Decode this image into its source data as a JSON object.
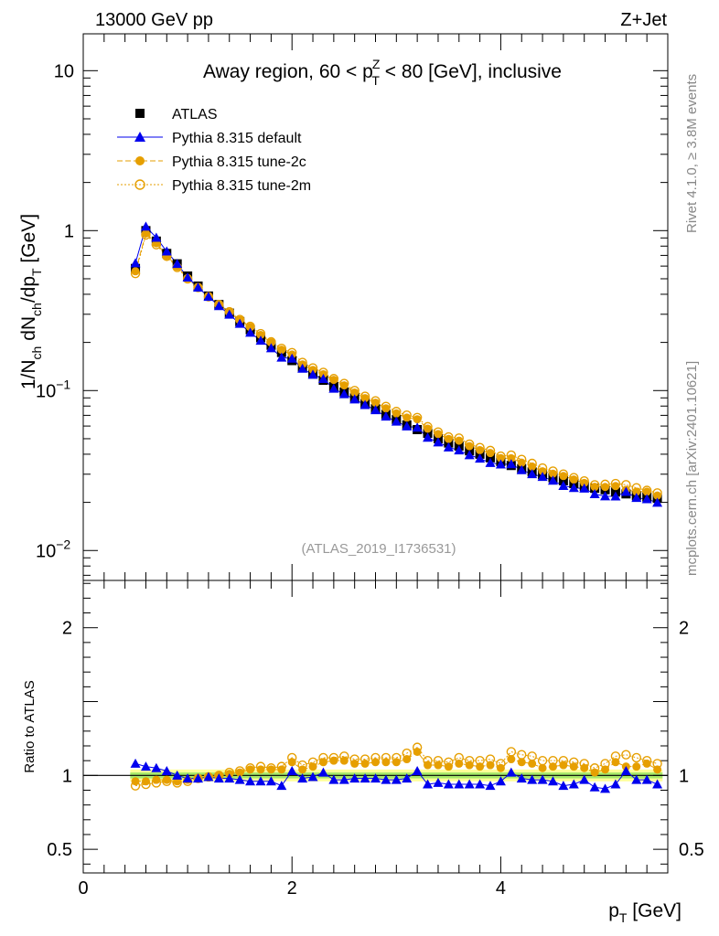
{
  "header": {
    "energy_label": "13000 GeV pp",
    "process_label": "Z+Jet",
    "side_rivet": "Rivet 4.1.0, ≥ 3.8M events",
    "side_mcplots": "mcplots.cern.ch [arXiv:2401.10621]",
    "analysis_id": "(ATLAS_2019_I1736531)"
  },
  "chart_data": [
    {
      "type": "scatter",
      "panel": "main",
      "title": "Away region, 60 < p_T^Z < 80 [GeV], inclusive",
      "ylabel": "1/N_ch dN_ch/dp_T [GeV]",
      "yscale": "log",
      "ylim": [
        0.0065,
        17
      ],
      "xlim": [
        0,
        5.6
      ],
      "yticks": [
        {
          "value": 10,
          "label": "10"
        },
        {
          "value": 1,
          "label": "1"
        },
        {
          "value": 0.1,
          "label": "10^-1"
        },
        {
          "value": 0.01,
          "label": "10^-2"
        }
      ],
      "legend_position": "top-left",
      "x": [
        0.5,
        0.6,
        0.7,
        0.8,
        0.9,
        1.0,
        1.1,
        1.2,
        1.3,
        1.4,
        1.5,
        1.6,
        1.7,
        1.8,
        1.9,
        2.0,
        2.1,
        2.2,
        2.3,
        2.4,
        2.5,
        2.6,
        2.7,
        2.8,
        2.9,
        3.0,
        3.1,
        3.2,
        3.3,
        3.4,
        3.5,
        3.6,
        3.7,
        3.8,
        3.9,
        4.0,
        4.1,
        4.2,
        4.3,
        4.4,
        4.5,
        4.6,
        4.7,
        4.8,
        4.9,
        5.0,
        5.1,
        5.2,
        5.3,
        5.4,
        5.5
      ],
      "series": [
        {
          "name": "ATLAS",
          "color": "#000000",
          "marker": "square",
          "values": [
            0.58,
            1.0,
            0.86,
            0.72,
            0.62,
            0.52,
            0.45,
            0.39,
            0.345,
            0.305,
            0.27,
            0.24,
            0.214,
            0.192,
            0.173,
            0.154,
            0.14,
            0.127,
            0.116,
            0.106,
            0.098,
            0.09,
            0.083,
            0.077,
            0.071,
            0.066,
            0.061,
            0.057,
            0.054,
            0.05,
            0.047,
            0.045,
            0.042,
            0.04,
            0.038,
            0.036,
            0.034,
            0.0325,
            0.031,
            0.0298,
            0.0285,
            0.0273,
            0.0262,
            0.0252,
            0.0245,
            0.024,
            0.0232,
            0.0226,
            0.022,
            0.0216,
            0.0212
          ]
        },
        {
          "name": "Pythia 8.315 default",
          "color": "#0000ee",
          "marker": "triangle",
          "ratio": [
            1.08,
            1.06,
            1.05,
            1.03,
            1.0,
            0.98,
            0.98,
            0.99,
            0.98,
            0.98,
            0.97,
            0.96,
            0.96,
            0.96,
            0.93,
            1.03,
            0.98,
            0.99,
            1.02,
            0.97,
            0.97,
            0.98,
            0.98,
            0.98,
            0.97,
            0.97,
            0.98,
            1.03,
            0.94,
            0.95,
            0.94,
            0.94,
            0.94,
            0.94,
            0.93,
            0.96,
            1.02,
            0.98,
            0.97,
            0.97,
            0.96,
            0.93,
            0.94,
            0.97,
            0.92,
            0.91,
            0.94,
            1.03,
            0.97,
            0.97,
            0.94
          ]
        },
        {
          "name": "Pythia 8.315 tune-2c",
          "color": "#e69f00",
          "marker": "circle",
          "ratio": [
            0.96,
            0.96,
            0.97,
            0.97,
            0.96,
            0.97,
            0.98,
            0.99,
            1.0,
            1.01,
            1.02,
            1.04,
            1.04,
            1.04,
            1.04,
            1.09,
            1.04,
            1.06,
            1.09,
            1.1,
            1.1,
            1.08,
            1.08,
            1.09,
            1.09,
            1.09,
            1.11,
            1.16,
            1.07,
            1.07,
            1.06,
            1.08,
            1.07,
            1.06,
            1.07,
            1.05,
            1.11,
            1.09,
            1.08,
            1.05,
            1.06,
            1.07,
            1.06,
            1.05,
            1.02,
            1.04,
            1.09,
            1.06,
            1.06,
            1.08,
            1.04
          ]
        },
        {
          "name": "Pythia 8.315 tune-2m",
          "color": "#e69f00",
          "marker": "open-circle",
          "ratio": [
            0.93,
            0.94,
            0.95,
            0.96,
            0.95,
            0.96,
            0.98,
            0.99,
            1.0,
            1.02,
            1.03,
            1.05,
            1.06,
            1.05,
            1.06,
            1.12,
            1.07,
            1.09,
            1.12,
            1.12,
            1.13,
            1.11,
            1.11,
            1.12,
            1.12,
            1.12,
            1.15,
            1.19,
            1.1,
            1.1,
            1.09,
            1.12,
            1.1,
            1.1,
            1.11,
            1.08,
            1.16,
            1.14,
            1.13,
            1.1,
            1.1,
            1.1,
            1.09,
            1.08,
            1.05,
            1.08,
            1.13,
            1.14,
            1.12,
            1.1,
            1.08
          ]
        }
      ]
    },
    {
      "type": "scatter",
      "panel": "ratio",
      "ylabel": "Ratio to ATLAS",
      "xlabel": "p_T [GeV]",
      "ylim": [
        0.34,
        2.32
      ],
      "xlim": [
        0,
        5.6
      ],
      "yticks": [
        {
          "value": 2,
          "label": "2"
        },
        {
          "value": 1,
          "label": "1"
        },
        {
          "value": 0.5,
          "label": "0.5"
        }
      ],
      "xticks": [
        {
          "value": 0,
          "label": "0"
        },
        {
          "value": 2,
          "label": "2"
        },
        {
          "value": 4,
          "label": "4"
        }
      ],
      "reference_line": 1,
      "uncertainty_bands": [
        {
          "name": "inner",
          "color": "#a6e86a",
          "halfwidth": 0.02
        },
        {
          "name": "outer",
          "color": "#ffff99",
          "halfwidth": 0.04
        }
      ]
    }
  ]
}
